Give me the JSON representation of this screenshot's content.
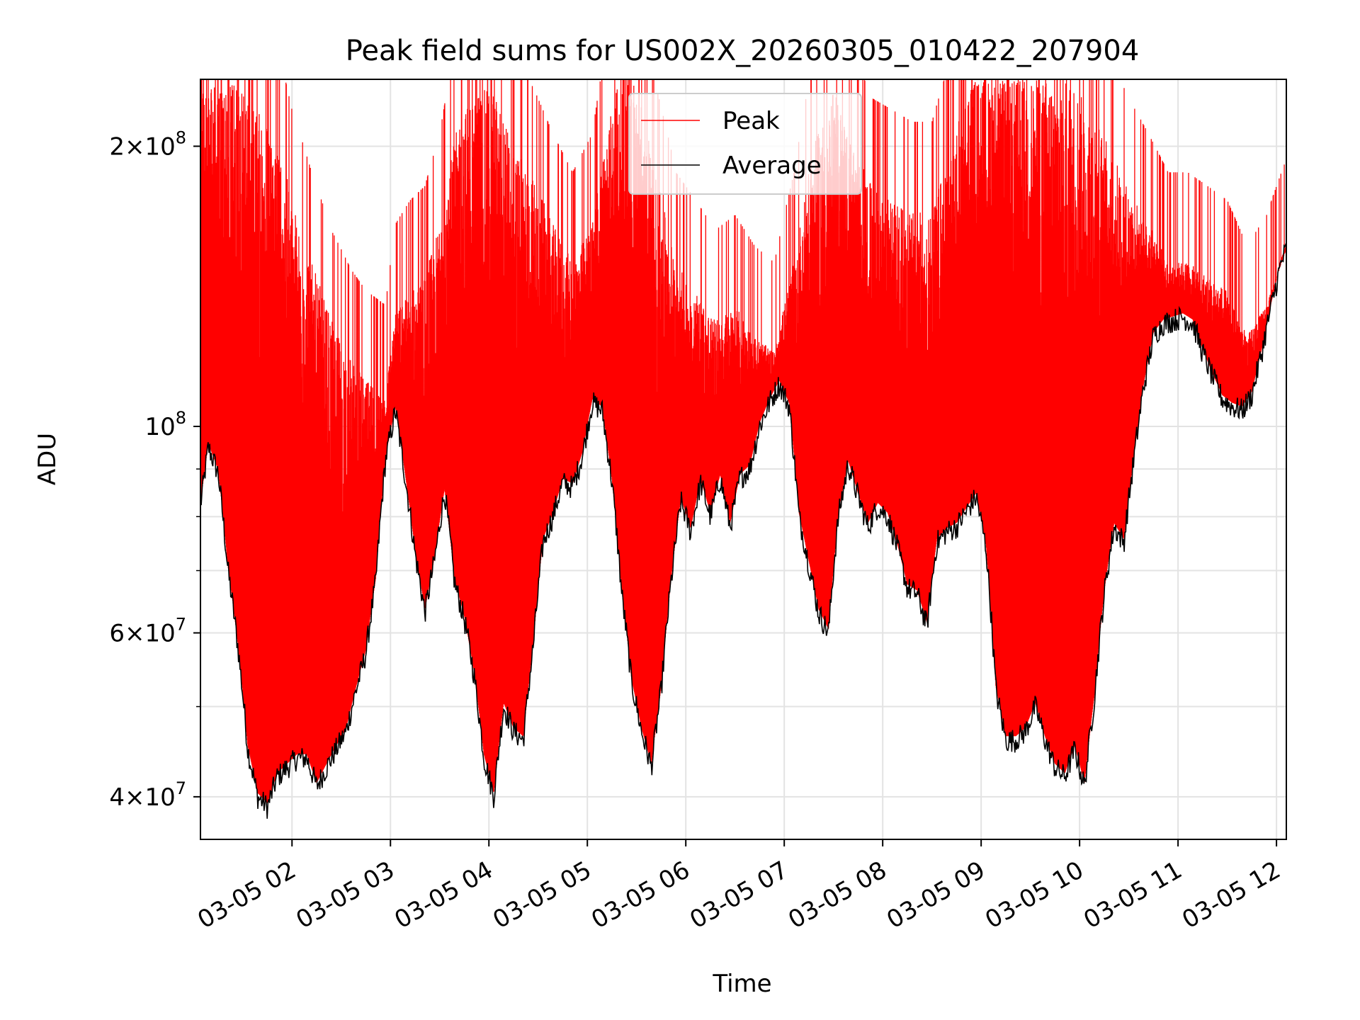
{
  "chart_data": {
    "type": "line",
    "title": "Peak field sums for US002X_20260305_010422_207904",
    "xlabel": "Time",
    "ylabel": "ADU",
    "yscale": "log",
    "ylim": [
      36000000,
      236000000
    ],
    "xlim_hours": [
      1.07,
      12.1
    ],
    "grid": true,
    "legend_position": "top-center",
    "x_tick_values_hours": [
      2,
      3,
      4,
      5,
      6,
      7,
      8,
      9,
      10,
      11,
      12
    ],
    "x_tick_labels": [
      "03-05 02",
      "03-05 03",
      "03-05 04",
      "03-05 05",
      "03-05 06",
      "03-05 07",
      "03-05 08",
      "03-05 09",
      "03-05 10",
      "03-05 11",
      "03-05 12"
    ],
    "y_major_ticks": [
      {
        "value": 40000000,
        "base": "4",
        "exp": "7"
      },
      {
        "value": 60000000,
        "base": "6",
        "exp": "7"
      },
      {
        "value": 100000000,
        "base": "",
        "exp": "8"
      },
      {
        "value": 200000000,
        "base": "2",
        "exp": "8"
      }
    ],
    "y_minor_ticks": [
      50000000,
      70000000,
      80000000,
      90000000
    ],
    "series": [
      {
        "name": "Peak",
        "color": "#ff0000",
        "x_hours": [
          1.07,
          1.3,
          1.5,
          1.7,
          1.85,
          2.0,
          2.2,
          2.4,
          2.6,
          2.75,
          2.95,
          3.05,
          3.2,
          3.35,
          3.5,
          3.7,
          3.9,
          4.05,
          4.25,
          4.45,
          4.65,
          4.85,
          5.05,
          5.3,
          5.5,
          5.7,
          5.9,
          6.1,
          6.3,
          6.5,
          6.7,
          6.9,
          7.1,
          7.3,
          7.5,
          7.7,
          7.9,
          8.1,
          8.3,
          8.5,
          8.7,
          8.9,
          9.1,
          9.3,
          9.5,
          9.7,
          9.9,
          10.1,
          10.3,
          10.5,
          10.7,
          10.9,
          11.1,
          11.3,
          11.5,
          11.7,
          11.9,
          12.1
        ],
        "values": [
          236000000,
          236000000,
          230000000,
          215000000,
          205000000,
          175000000,
          150000000,
          130000000,
          118000000,
          112000000,
          108000000,
          132000000,
          140000000,
          145000000,
          165000000,
          215000000,
          230000000,
          230000000,
          200000000,
          185000000,
          165000000,
          150000000,
          165000000,
          236000000,
          236000000,
          185000000,
          150000000,
          140000000,
          130000000,
          135000000,
          125000000,
          120000000,
          150000000,
          200000000,
          230000000,
          200000000,
          180000000,
          175000000,
          170000000,
          170000000,
          200000000,
          236000000,
          236000000,
          236000000,
          236000000,
          236000000,
          236000000,
          220000000,
          200000000,
          180000000,
          165000000,
          150000000,
          150000000,
          145000000,
          140000000,
          125000000,
          135000000,
          155000000
        ]
      },
      {
        "name": "Average",
        "color": "#000000",
        "x_hours": [
          1.07,
          1.15,
          1.25,
          1.35,
          1.45,
          1.55,
          1.65,
          1.75,
          1.85,
          1.95,
          2.05,
          2.15,
          2.25,
          2.35,
          2.45,
          2.55,
          2.65,
          2.75,
          2.85,
          2.95,
          3.05,
          3.15,
          3.25,
          3.35,
          3.45,
          3.55,
          3.65,
          3.75,
          3.85,
          3.95,
          4.05,
          4.15,
          4.25,
          4.35,
          4.45,
          4.55,
          4.65,
          4.75,
          4.85,
          4.95,
          5.05,
          5.15,
          5.25,
          5.35,
          5.45,
          5.55,
          5.65,
          5.75,
          5.85,
          5.95,
          6.05,
          6.15,
          6.25,
          6.35,
          6.45,
          6.55,
          6.65,
          6.75,
          6.85,
          6.95,
          7.05,
          7.15,
          7.25,
          7.35,
          7.45,
          7.55,
          7.65,
          7.75,
          7.85,
          7.95,
          8.05,
          8.15,
          8.25,
          8.35,
          8.45,
          8.55,
          8.65,
          8.75,
          8.85,
          8.95,
          9.05,
          9.15,
          9.25,
          9.35,
          9.45,
          9.55,
          9.65,
          9.75,
          9.85,
          9.95,
          10.05,
          10.15,
          10.25,
          10.35,
          10.45,
          10.55,
          10.65,
          10.75,
          10.85,
          10.95,
          11.05,
          11.15,
          11.25,
          11.35,
          11.45,
          11.55,
          11.65,
          11.75,
          11.85,
          11.95,
          12.05,
          12.1
        ],
        "values": [
          82000000,
          95000000,
          89000000,
          70000000,
          58000000,
          45000000,
          40000000,
          39000000,
          42000000,
          43000000,
          44000000,
          44000000,
          41000000,
          43000000,
          45000000,
          47000000,
          52000000,
          57000000,
          68000000,
          92000000,
          104000000,
          88000000,
          73000000,
          63000000,
          72000000,
          85000000,
          68000000,
          62000000,
          54000000,
          44000000,
          40000000,
          50000000,
          47000000,
          46000000,
          58000000,
          75000000,
          80000000,
          87000000,
          86000000,
          93000000,
          106000000,
          104000000,
          87000000,
          66000000,
          53000000,
          47000000,
          43000000,
          52000000,
          68000000,
          83000000,
          77000000,
          87000000,
          80000000,
          88000000,
          78000000,
          88000000,
          90000000,
          100000000,
          106000000,
          111000000,
          105000000,
          80000000,
          71000000,
          63000000,
          60000000,
          80000000,
          91000000,
          84000000,
          78000000,
          82000000,
          80000000,
          74000000,
          67000000,
          66000000,
          61000000,
          75000000,
          77000000,
          78000000,
          81000000,
          84000000,
          74000000,
          52000000,
          46000000,
          46000000,
          47000000,
          50000000,
          46000000,
          43000000,
          42000000,
          45000000,
          41000000,
          51000000,
          66000000,
          78000000,
          75000000,
          92000000,
          110000000,
          125000000,
          129000000,
          130000000,
          131000000,
          129000000,
          120000000,
          113000000,
          107000000,
          105000000,
          104000000,
          108000000,
          120000000,
          135000000,
          150000000,
          155000000
        ]
      }
    ]
  }
}
